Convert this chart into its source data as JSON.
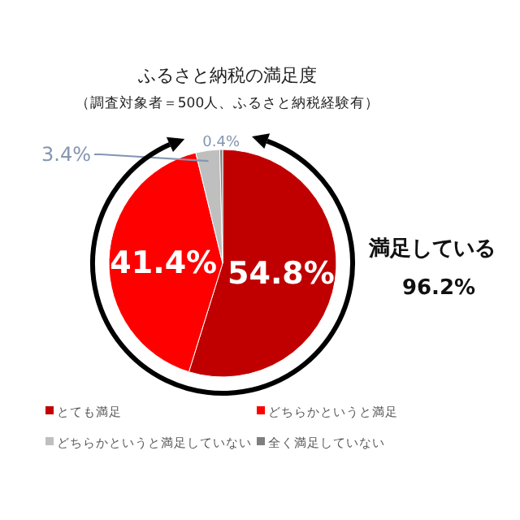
{
  "chart_data": {
    "type": "pie",
    "title": "ふるさと納税の満足度",
    "subtitle": "（調査対象者＝500人、ふるさと納税経験有）",
    "categories": [
      "とても満足",
      "どちらかというと満足",
      "どちらかというと満足していない",
      "全く満足していない"
    ],
    "values": [
      54.8,
      41.4,
      3.4,
      0.4
    ],
    "colors": [
      "#c00000",
      "#ff0000",
      "#bfbfbf",
      "#7f7f7f"
    ],
    "value_labels": [
      "54.8%",
      "41.4%",
      "3.4%",
      "0.4%"
    ],
    "legend": "bottom",
    "annotations": [
      "満足している",
      "96.2%"
    ]
  }
}
